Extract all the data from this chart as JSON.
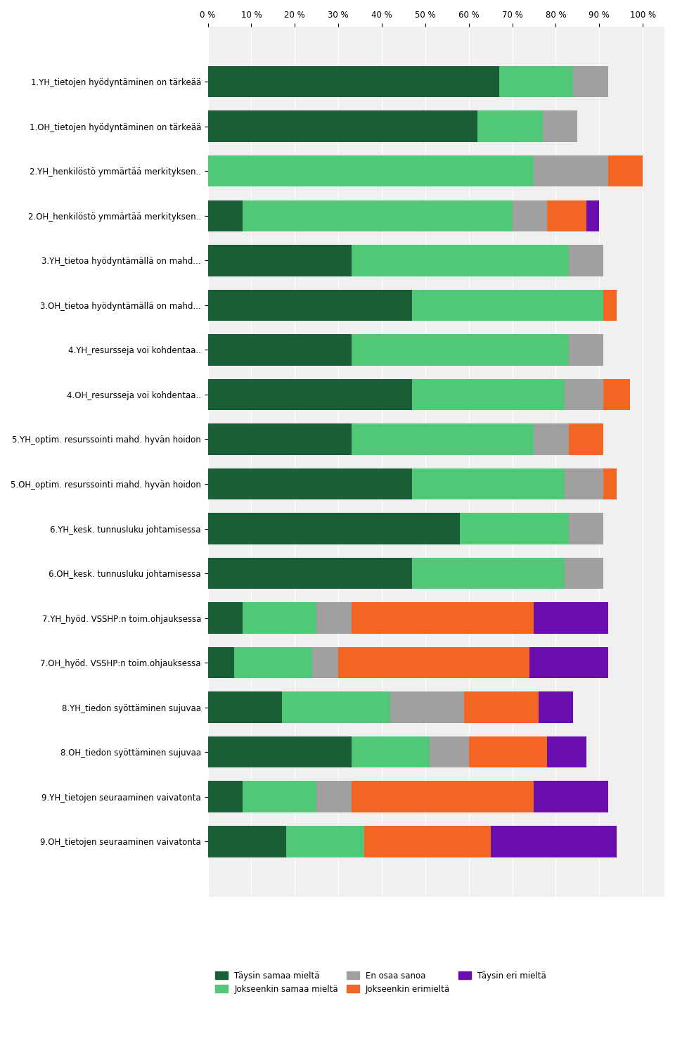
{
  "categories": [
    "1.YH_tietojen hyödyntäminen on tärkeää",
    "1.OH_tietojen hyödyntäminen on tärkeää",
    "2.YH_henkilöstö ymmärtää merkityksen..",
    "2.OH_henkilöstö ymmärtää merkityksen..",
    "3.YH_tietoa hyödyntämällä on mahd...",
    "3.OH_tietoa hyödyntämällä on mahd...",
    "4.YH_resursseja voi kohdentaa..",
    "4.OH_resursseja voi kohdentaa..",
    "5.YH_optim. resurssointi mahd. hyvän hoidon",
    "5.OH_optim. resurssointi mahd. hyvän hoidon",
    "6.YH_kesk. tunnusluku johtamisessa",
    "6.OH_kesk. tunnusluku johtamisessa",
    "7.YH_hyöd. VSSHP:n toim.ohjauksessa",
    "7.OH_hyöd. VSSHP:n toim.ohjauksessa",
    "8.YH_tiedon syöttäminen sujuvaa",
    "8.OH_tiedon syöttäminen sujuvaa",
    "9.YH_tietojen seuraaminen vaivatonta",
    "9.OH_tietojen seuraaminen vaivatonta"
  ],
  "series": {
    "Täysin samaa mieltä": [
      67,
      62,
      0,
      8,
      33,
      47,
      33,
      47,
      33,
      47,
      58,
      47,
      8,
      6,
      17,
      33,
      8,
      18
    ],
    "Jokseenkin samaa mieltä": [
      17,
      15,
      75,
      62,
      50,
      44,
      50,
      35,
      42,
      35,
      25,
      35,
      17,
      18,
      25,
      18,
      17,
      18
    ],
    "En osaa sanoa": [
      8,
      8,
      17,
      8,
      8,
      0,
      8,
      9,
      8,
      9,
      8,
      9,
      8,
      6,
      17,
      9,
      8,
      0
    ],
    "Jokseenkin erimieltä": [
      0,
      0,
      8,
      9,
      0,
      3,
      0,
      6,
      8,
      3,
      0,
      0,
      42,
      44,
      17,
      18,
      42,
      29
    ],
    "Täysin eri mieltä": [
      0,
      0,
      0,
      3,
      0,
      0,
      0,
      0,
      0,
      0,
      0,
      0,
      17,
      18,
      8,
      9,
      17,
      29
    ]
  },
  "colors": {
    "Täysin samaa mieltä": "#1a5e38",
    "Jokseenkin samaa mieltä": "#50c878",
    "En osaa sanoa": "#a0a0a0",
    "Jokseenkin erimieltä": "#f26522",
    "Täysin eri mieltä": "#6a0dad"
  },
  "xlim": [
    0,
    105
  ],
  "xticks": [
    0,
    10,
    20,
    30,
    40,
    50,
    60,
    70,
    80,
    90,
    100
  ],
  "xtick_labels": [
    "0 %",
    "10 %",
    "20 %",
    "30 %",
    "40 %",
    "50 %",
    "60 %",
    "70 %",
    "80 %",
    "90 %",
    "100 %"
  ],
  "bar_height": 0.7,
  "figsize": [
    9.6,
    14.97
  ],
  "dpi": 100
}
